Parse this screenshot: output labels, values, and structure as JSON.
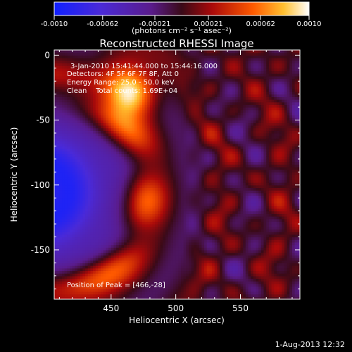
{
  "chart_data": {
    "type": "heatmap",
    "title": "Reconstructed RHESSI Image",
    "xlabel": "Heliocentric X (arcsec)",
    "ylabel": "Heliocentric Y (arcsec)",
    "xlim": [
      406,
      596
    ],
    "ylim": [
      -188,
      4
    ],
    "x_ticks": [
      450,
      500,
      550
    ],
    "y_ticks": [
      0,
      -50,
      -100,
      -150
    ],
    "colorbar": {
      "min": -0.001,
      "max": 0.001,
      "ticks": [
        "-0.0010",
        "-0.00062",
        "-0.00021",
        "0.00021",
        "0.00062",
        "0.0010"
      ],
      "unit": "(photons cm⁻² s⁻¹ asec⁻²)"
    },
    "annotations": {
      "time_range": "3-Jan-2010 15:41:44.000 to 15:44:16.000",
      "detectors": "Detectors: 4F 5F 6F 7F 8F, Att 0",
      "energy": "Energy Range: 25.0 - 50.0 keV",
      "clean": "Clean    Total counts: 1.69E+04",
      "peak": "Position of Peak = [466,-28]"
    },
    "peak": {
      "x": 466,
      "y": -28
    }
  },
  "footer": {
    "date": "1-Aug-2013 12:32"
  }
}
